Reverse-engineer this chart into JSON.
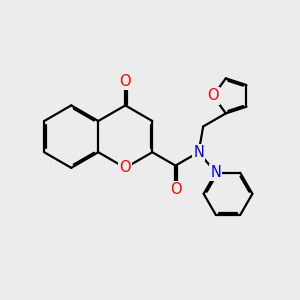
{
  "background_color": "#ececec",
  "bond_color": "#000000",
  "O_color": "#ff0000",
  "N_color": "#0000ff",
  "bond_width": 1.6,
  "dbo": 0.055,
  "font_size": 10.5,
  "fig_width": 3.0,
  "fig_height": 3.0,
  "dpi": 100,
  "xlim": [
    0,
    10
  ],
  "ylim": [
    0,
    10
  ]
}
